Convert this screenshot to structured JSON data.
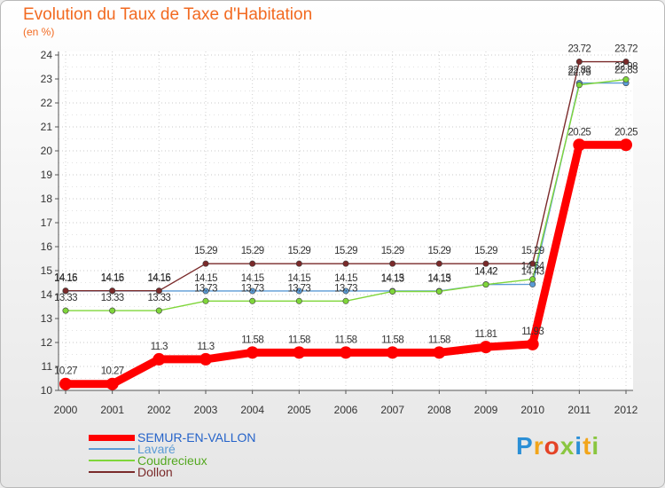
{
  "title": "Evolution du Taux de Taxe d'Habitation",
  "subtitle": "(en %)",
  "brand": {
    "logo_text": "Proxiti",
    "logo_colors": [
      "#2b8fd6",
      "#f2a51a",
      "#e44326",
      "#8ac640",
      "#2b8fd6",
      "#f2a51a",
      "#8ac640"
    ]
  },
  "chart_data": {
    "type": "line",
    "x": [
      "2000",
      "2001",
      "2002",
      "2003",
      "2004",
      "2005",
      "2006",
      "2007",
      "2008",
      "2009",
      "2010",
      "2011",
      "2012"
    ],
    "ylim": [
      10,
      24
    ],
    "yticks": [
      "10",
      "11",
      "12",
      "13",
      "14",
      "15",
      "16",
      "17",
      "18",
      "19",
      "20",
      "21",
      "22",
      "23",
      "24"
    ],
    "grid": true,
    "legend_position": "bottom-left",
    "series": [
      {
        "name": "SEMUR-EN-VALLON",
        "color": "#ff0000",
        "text_color": "#2563c9",
        "emphasis": true,
        "values": [
          10.27,
          10.27,
          11.3,
          11.3,
          11.58,
          11.58,
          11.58,
          11.58,
          11.58,
          11.81,
          11.93,
          20.25,
          20.25
        ],
        "labels": [
          "10.27",
          "10.27",
          "11.3",
          "11.3",
          "11.58",
          "11.58",
          "11.58",
          "11.58",
          "11.58",
          "11.81",
          "11.93",
          "20.25",
          "20.25"
        ]
      },
      {
        "name": "Lavaré",
        "color": "#5b9bd5",
        "text_color": "#5b9bd5",
        "emphasis": false,
        "values": [
          14.15,
          14.15,
          14.15,
          14.15,
          14.15,
          14.15,
          14.15,
          14.15,
          14.15,
          14.42,
          14.43,
          22.83,
          22.83
        ],
        "labels": [
          "14.15",
          "14.15",
          "14.15",
          "14.15",
          "14.15",
          "14.15",
          "14.15",
          "14.15",
          "14.15",
          "14.42",
          "14.43",
          "22.83",
          "22.83"
        ]
      },
      {
        "name": "Coudrecieux",
        "color": "#7fd63a",
        "text_color": "#54a820",
        "emphasis": false,
        "values": [
          13.33,
          13.33,
          13.33,
          13.73,
          13.73,
          13.73,
          13.73,
          14.13,
          14.13,
          14.42,
          14.64,
          22.75,
          22.98
        ],
        "labels": [
          "13.33",
          "13.33",
          "13.33",
          "13.73",
          "13.73",
          "13.73",
          "13.73",
          "14.13",
          "14.13",
          "14.42",
          "14.64",
          "22.75",
          "22.98"
        ]
      },
      {
        "name": "Dollon",
        "color": "#7a2a2a",
        "text_color": "#7a2a2a",
        "emphasis": false,
        "values": [
          14.16,
          14.16,
          14.16,
          15.29,
          15.29,
          15.29,
          15.29,
          15.29,
          15.29,
          15.29,
          15.29,
          23.72,
          23.72
        ],
        "labels": [
          "14.16",
          "14.16",
          "14.16",
          "15.29",
          "15.29",
          "15.29",
          "15.29",
          "15.29",
          "15.29",
          "15.29",
          "15.29",
          "23.72",
          "23.72"
        ]
      }
    ]
  }
}
